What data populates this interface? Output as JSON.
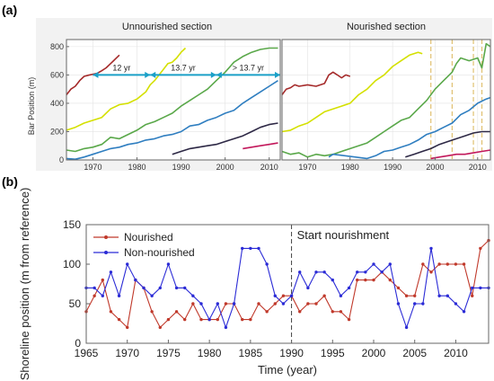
{
  "panels": {
    "a_letter": "(a)",
    "b_letter": "(b)"
  },
  "chart_data": [
    {
      "type": "line",
      "title": "Unnourished section",
      "ylabel": "Bar Position (m)",
      "xlim": [
        1964,
        2012.5
      ],
      "ylim": [
        0,
        850
      ],
      "xticks": [
        1970,
        1980,
        1990,
        2000,
        2010
      ],
      "yticks": [
        0,
        200,
        400,
        600,
        800
      ],
      "grid": true,
      "series": [
        {
          "color": "#a52a2a",
          "x": [
            1964,
            1965,
            1966,
            1967,
            1968,
            1969,
            1970,
            1971,
            1972,
            1973,
            1974,
            1975,
            1976
          ],
          "y": [
            460,
            500,
            520,
            560,
            590,
            598,
            605,
            612,
            630,
            650,
            680,
            710,
            740
          ]
        },
        {
          "color": "#d4e000",
          "x": [
            1964,
            1966,
            1968,
            1970,
            1972,
            1974,
            1976,
            1978,
            1980,
            1982,
            1983,
            1984,
            1985,
            1986,
            1987,
            1988,
            1989,
            1990,
            1991
          ],
          "y": [
            210,
            230,
            260,
            280,
            300,
            360,
            390,
            400,
            430,
            480,
            530,
            560,
            600,
            640,
            680,
            690,
            720,
            760,
            790
          ]
        },
        {
          "color": "#5aa84a",
          "x": [
            1964,
            1966,
            1968,
            1970,
            1972,
            1974,
            1976,
            1978,
            1980,
            1982,
            1984,
            1986,
            1988,
            1990,
            1992,
            1994,
            1996,
            1998,
            2000,
            2002,
            2004,
            2006,
            2008,
            2010,
            2012
          ],
          "y": [
            70,
            60,
            80,
            90,
            110,
            160,
            150,
            180,
            210,
            250,
            270,
            300,
            330,
            380,
            420,
            460,
            500,
            560,
            620,
            690,
            730,
            760,
            780,
            790,
            790
          ]
        },
        {
          "color": "#2f7ec0",
          "x": [
            1964,
            1966,
            1968,
            1970,
            1972,
            1974,
            1976,
            1978,
            1980,
            1982,
            1984,
            1986,
            1988,
            1990,
            1992,
            1994,
            1996,
            1998,
            2000,
            2002,
            2004,
            2006,
            2008,
            2010,
            2012
          ],
          "y": [
            10,
            5,
            20,
            40,
            60,
            80,
            90,
            110,
            120,
            140,
            150,
            170,
            180,
            200,
            240,
            250,
            280,
            300,
            330,
            350,
            400,
            440,
            480,
            520,
            560
          ]
        },
        {
          "color": "#2d2845",
          "x": [
            1988,
            1990,
            1992,
            1994,
            1996,
            1998,
            2000,
            2002,
            2004,
            2006,
            2008,
            2010,
            2012
          ],
          "y": [
            40,
            60,
            80,
            90,
            100,
            110,
            130,
            150,
            170,
            200,
            230,
            250,
            260
          ]
        },
        {
          "color": "#c2185b",
          "x": [
            2004,
            2006,
            2008,
            2010,
            2012
          ],
          "y": [
            80,
            90,
            100,
            110,
            120
          ]
        }
      ],
      "annotations": [
        {
          "text": "12 yr",
          "x_from": 1970,
          "x_to": 1983,
          "y": 600
        },
        {
          "text": "13.7 yr",
          "x_from": 1983,
          "x_to": 1998,
          "y": 600
        },
        {
          "text": "> 13.7 yr",
          "x_from": 1998,
          "x_to": 2012.5,
          "y": 600
        }
      ]
    },
    {
      "type": "line",
      "title": "Nourished section",
      "xlim": [
        1964,
        2013
      ],
      "ylim": [
        0,
        850
      ],
      "xticks": [
        1970,
        1980,
        1990,
        2000,
        2010
      ],
      "yticks": [
        0,
        200,
        400,
        600,
        800
      ],
      "grid": true,
      "vlines": [
        1999,
        2004,
        2009,
        2011
      ],
      "series": [
        {
          "color": "#a52a2a",
          "x": [
            1964,
            1965,
            1966,
            1967,
            1968,
            1970,
            1972,
            1974,
            1975,
            1976,
            1977,
            1978,
            1979,
            1980
          ],
          "y": [
            460,
            500,
            510,
            530,
            520,
            530,
            520,
            540,
            600,
            620,
            600,
            580,
            600,
            590
          ]
        },
        {
          "color": "#d4e000",
          "x": [
            1964,
            1966,
            1968,
            1970,
            1972,
            1974,
            1976,
            1978,
            1980,
            1982,
            1984,
            1986,
            1988,
            1990,
            1992,
            1994,
            1996,
            1997
          ],
          "y": [
            200,
            210,
            240,
            260,
            300,
            340,
            360,
            380,
            400,
            460,
            500,
            560,
            600,
            660,
            700,
            740,
            760,
            750
          ]
        },
        {
          "color": "#5aa84a",
          "x": [
            1964,
            1966,
            1968,
            1970,
            1972,
            1974,
            1976,
            1978,
            1980,
            1982,
            1984,
            1986,
            1988,
            1990,
            1992,
            1994,
            1996,
            1998,
            2000,
            2002,
            2004,
            2005,
            2006,
            2008,
            2010,
            2011,
            2012,
            2013
          ],
          "y": [
            60,
            40,
            50,
            20,
            40,
            30,
            40,
            60,
            80,
            100,
            120,
            160,
            200,
            240,
            280,
            300,
            360,
            420,
            500,
            560,
            620,
            680,
            720,
            700,
            720,
            650,
            820,
            800
          ]
        },
        {
          "color": "#2f7ec0",
          "x": [
            1975,
            1976,
            1984,
            1986,
            1988,
            1990,
            1992,
            1994,
            1996,
            1998,
            2000,
            2002,
            2004,
            2006,
            2008,
            2010,
            2012,
            2013
          ],
          "y": [
            20,
            40,
            10,
            30,
            60,
            70,
            90,
            110,
            140,
            180,
            200,
            230,
            260,
            320,
            350,
            400,
            430,
            440
          ]
        },
        {
          "color": "#2d2845",
          "x": [
            1993,
            1995,
            1997,
            1999,
            2001,
            2003,
            2005,
            2007,
            2009,
            2011,
            2013
          ],
          "y": [
            20,
            40,
            60,
            80,
            110,
            130,
            150,
            170,
            190,
            200,
            200
          ]
        },
        {
          "color": "#c2185b",
          "x": [
            1999,
            2001,
            2003,
            2005,
            2007,
            2009,
            2011,
            2013
          ],
          "y": [
            10,
            20,
            30,
            40,
            40,
            50,
            60,
            70
          ]
        }
      ]
    },
    {
      "type": "line",
      "xlabel": "Time (year)",
      "ylabel": "Shoreline position (m from reference)",
      "xlim": [
        1965,
        2014
      ],
      "ylim": [
        0,
        150
      ],
      "xticks": [
        1965,
        1970,
        1975,
        1980,
        1985,
        1990,
        1995,
        2000,
        2005,
        2010
      ],
      "yticks": [
        0,
        50,
        100,
        150
      ],
      "grid": false,
      "legend": "top-left",
      "annotation": {
        "text": "Start nourishment",
        "x": 1990
      },
      "series": [
        {
          "name": "Nourished",
          "color": "#c0392b",
          "x": [
            1965,
            1966,
            1967,
            1968,
            1969,
            1970,
            1971,
            1972,
            1973,
            1974,
            1975,
            1976,
            1977,
            1978,
            1979,
            1980,
            1981,
            1982,
            1983,
            1984,
            1985,
            1986,
            1987,
            1988,
            1989,
            1990,
            1991,
            1992,
            1993,
            1994,
            1995,
            1996,
            1997,
            1998,
            1999,
            2000,
            2001,
            2002,
            2003,
            2004,
            2005,
            2006,
            2007,
            2008,
            2009,
            2010,
            2011,
            2012,
            2013,
            2014
          ],
          "y": [
            40,
            60,
            80,
            40,
            30,
            20,
            80,
            70,
            40,
            20,
            30,
            40,
            30,
            50,
            30,
            30,
            30,
            50,
            50,
            30,
            30,
            50,
            40,
            50,
            60,
            60,
            40,
            50,
            50,
            60,
            40,
            40,
            30,
            80,
            80,
            80,
            90,
            80,
            70,
            60,
            60,
            100,
            90,
            100,
            100,
            100,
            100,
            60,
            120,
            130
          ]
        },
        {
          "name": "Non-nourished",
          "color": "#2b2bd6",
          "x": [
            1965,
            1966,
            1967,
            1968,
            1969,
            1970,
            1971,
            1972,
            1973,
            1974,
            1975,
            1976,
            1977,
            1978,
            1979,
            1980,
            1981,
            1982,
            1983,
            1984,
            1985,
            1986,
            1987,
            1988,
            1989,
            1990,
            1991,
            1992,
            1993,
            1994,
            1995,
            1996,
            1997,
            1998,
            1999,
            2000,
            2001,
            2002,
            2003,
            2004,
            2005,
            2006,
            2007,
            2008,
            2009,
            2010,
            2011,
            2012,
            2013,
            2014
          ],
          "y": [
            70,
            70,
            60,
            90,
            60,
            100,
            80,
            70,
            60,
            70,
            100,
            70,
            70,
            60,
            50,
            30,
            50,
            20,
            50,
            120,
            120,
            120,
            100,
            60,
            50,
            60,
            90,
            70,
            90,
            90,
            80,
            60,
            70,
            90,
            90,
            100,
            90,
            100,
            50,
            20,
            50,
            50,
            120,
            60,
            60,
            50,
            40,
            70,
            70,
            70
          ]
        }
      ]
    }
  ]
}
